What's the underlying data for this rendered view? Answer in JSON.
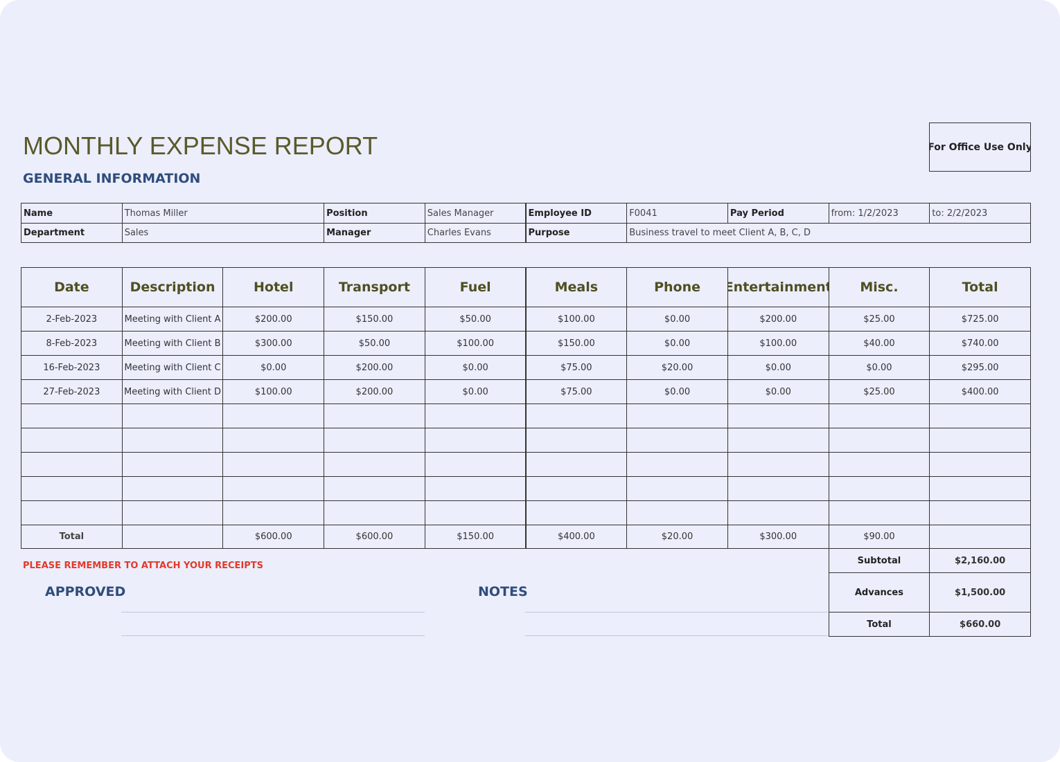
{
  "header": {
    "title": "MONTHLY EXPENSE REPORT",
    "section": "GENERAL INFORMATION",
    "office": "For Office Use Only"
  },
  "info": {
    "rows": [
      [
        "Name",
        "Thomas Miller",
        "Position",
        "Sales Manager",
        "Employee ID",
        "F0041",
        "Pay Period",
        "from: 1/2/2023",
        "to: 2/2/2023"
      ],
      [
        "Department",
        "Sales",
        "Manager",
        "Charles Evans",
        "Purpose",
        "Business travel to meet Client A, B, C, D"
      ]
    ]
  },
  "expenses": {
    "columns": [
      "Date",
      "Description",
      "Hotel",
      "Transport",
      "Fuel",
      "Meals",
      "Phone",
      "Entertainment",
      "Misc.",
      "Total"
    ],
    "rows": [
      [
        "2-Feb-2023",
        "Meeting with Client A",
        "$200.00",
        "$150.00",
        "$50.00",
        "$100.00",
        "$0.00",
        "$200.00",
        "$25.00",
        "$725.00"
      ],
      [
        "8-Feb-2023",
        "Meeting with Client B",
        "$300.00",
        "$50.00",
        "$100.00",
        "$150.00",
        "$0.00",
        "$100.00",
        "$40.00",
        "$740.00"
      ],
      [
        "16-Feb-2023",
        "Meeting with Client C",
        "$0.00",
        "$200.00",
        "$0.00",
        "$75.00",
        "$20.00",
        "$0.00",
        "$0.00",
        "$295.00"
      ],
      [
        "27-Feb-2023",
        "Meeting with Client D",
        "$100.00",
        "$200.00",
        "$0.00",
        "$75.00",
        "$0.00",
        "$0.00",
        "$25.00",
        "$400.00"
      ]
    ],
    "total_label": "Total",
    "totals": [
      "$600.00",
      "$600.00",
      "$150.00",
      "$400.00",
      "$20.00",
      "$300.00",
      "$90.00"
    ]
  },
  "summary": [
    [
      "Subtotal",
      "$2,160.00"
    ],
    [
      "Advances",
      "$1,500.00"
    ],
    [
      "Total",
      "$660.00"
    ]
  ],
  "reminder": "PLEASE REMEMBER TO ATTACH YOUR RECEIPTS",
  "approved": "APPROVED",
  "notes": "NOTES"
}
